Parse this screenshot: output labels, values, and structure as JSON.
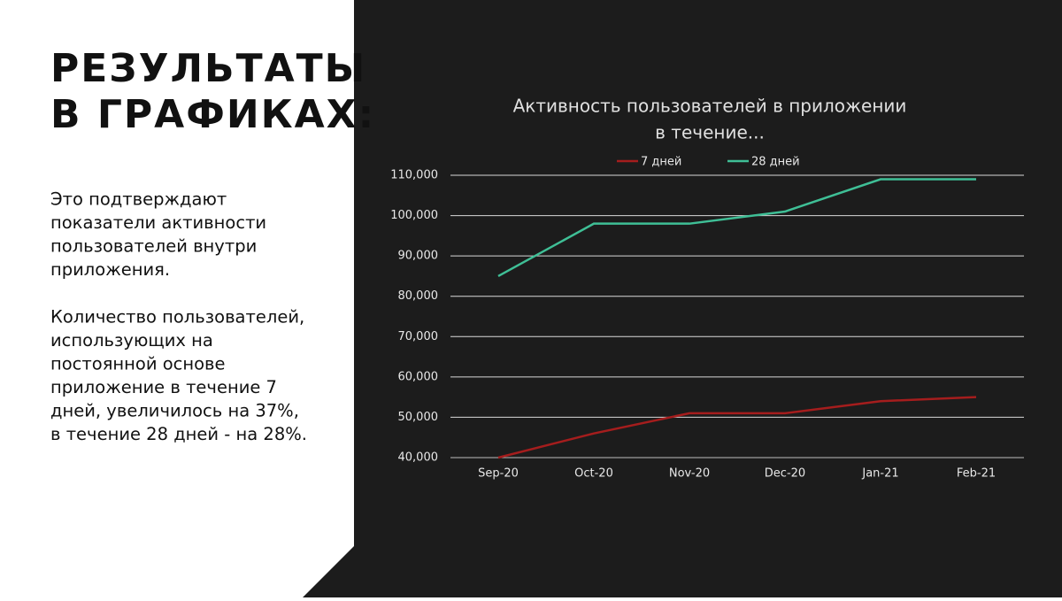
{
  "slide": {
    "heading": [
      "РЕЗУЛЬТАТЫ",
      "В ГРАФИКАХ:"
    ],
    "paragraphs": [
      [
        "Это подтверждают",
        "показатели активности",
        "пользователей внутри",
        "приложения."
      ],
      [
        "Количество пользователей,",
        "использующих на",
        "постоянной основе",
        "приложение в течение 7",
        "дней, увеличилось на 37%,",
        "в течение 28 дней - на 28%."
      ]
    ]
  },
  "chart_data": {
    "type": "line",
    "title": [
      "Активность пользователей в приложении",
      "в течение..."
    ],
    "categories": [
      "Sep-20",
      "Oct-20",
      "Nov-20",
      "Dec-20",
      "Jan-21",
      "Feb-21"
    ],
    "series": [
      {
        "name": "7 дней",
        "color": "#a51d1d",
        "values": [
          40000,
          46000,
          51000,
          51000,
          54000,
          55000
        ]
      },
      {
        "name": "28 дней",
        "color": "#3fbf96",
        "values": [
          85000,
          98000,
          98000,
          101000,
          109000,
          109000
        ]
      }
    ],
    "ylim": [
      40000,
      110000
    ],
    "yticks": [
      {
        "value": 40000,
        "label": "40,000"
      },
      {
        "value": 50000,
        "label": "50,000"
      },
      {
        "value": 60000,
        "label": "60,000"
      },
      {
        "value": 70000,
        "label": "70,000"
      },
      {
        "value": 80000,
        "label": "80,000"
      },
      {
        "value": 90000,
        "label": "90,000"
      },
      {
        "value": 100000,
        "label": "100,000"
      },
      {
        "value": 110000,
        "label": "110,000"
      }
    ],
    "grid": true,
    "legend": "top"
  }
}
